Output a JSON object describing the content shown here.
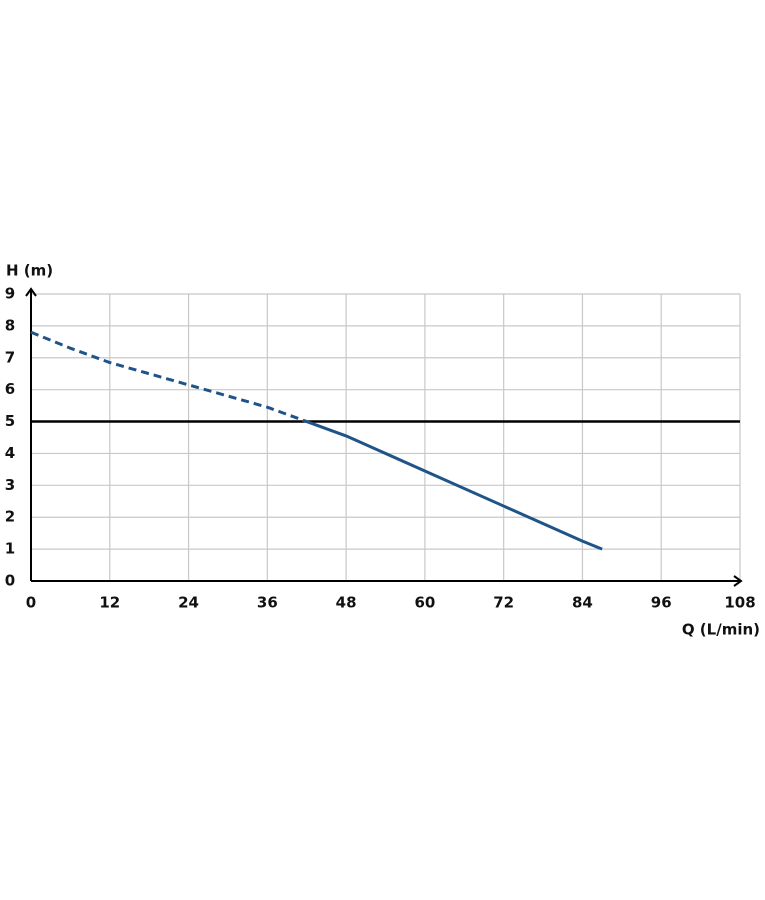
{
  "chart_data": {
    "type": "line",
    "y_label": "H (m)",
    "x_label": "Q (L/min)",
    "xlim": [
      0,
      108
    ],
    "xticks": [
      0,
      12,
      24,
      36,
      48,
      60,
      72,
      84,
      96,
      108
    ],
    "ylim": [
      0,
      9
    ],
    "yticks": [
      0,
      1,
      2,
      3,
      4,
      5,
      6,
      7,
      8,
      9
    ],
    "grid": true,
    "hlines": [
      {
        "value": 5,
        "color": "#000000"
      }
    ],
    "series": [
      {
        "color": "#1f5488",
        "line_style": "dashed",
        "x": [
          0,
          6,
          12,
          24,
          36,
          42
        ],
        "values": [
          7.8,
          7.3,
          6.85,
          6.15,
          5.45,
          5.0
        ]
      },
      {
        "color": "#1f5488",
        "line_style": "solid",
        "x": [
          42,
          48,
          60,
          72,
          84,
          87
        ],
        "values": [
          5.0,
          4.55,
          3.45,
          2.35,
          1.25,
          1.0
        ]
      }
    ]
  }
}
